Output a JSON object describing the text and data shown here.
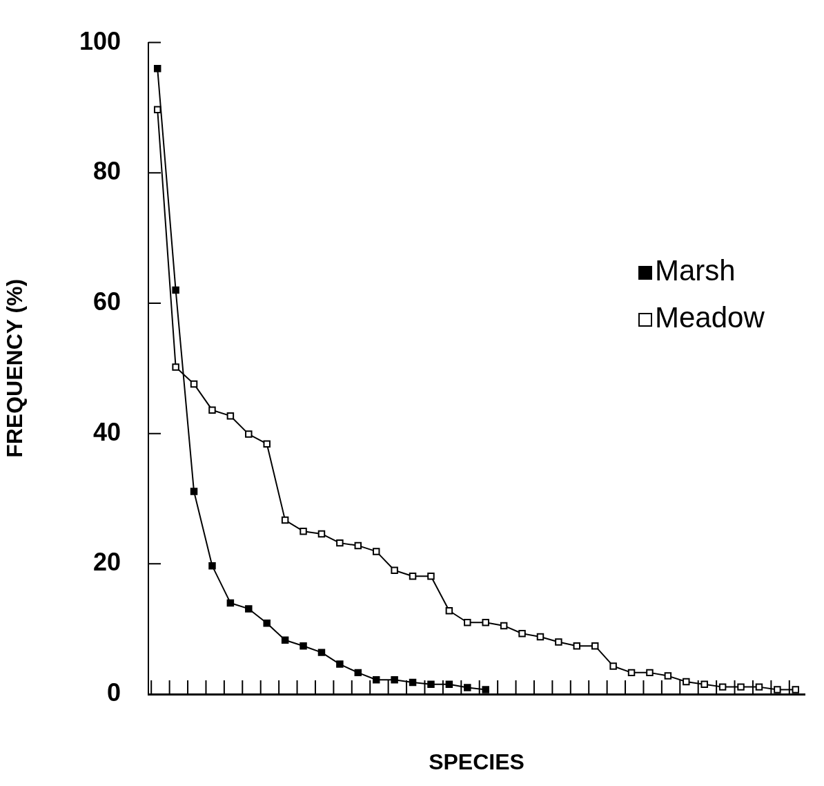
{
  "chart_data": {
    "type": "line",
    "xlabel": "SPECIES",
    "ylabel": "FREQUENCY (%)",
    "categories": [
      null,
      null,
      null,
      null,
      null,
      null,
      null,
      null,
      null,
      null,
      null,
      null,
      null,
      null,
      null,
      null,
      null,
      null,
      null,
      null,
      null,
      null,
      null,
      null,
      null,
      null,
      null,
      null,
      null,
      null,
      null,
      null,
      null,
      null,
      null,
      null
    ],
    "series": [
      {
        "name": "Marsh",
        "color": "#000000",
        "values": [
          96,
          62,
          31.1,
          19.7,
          14,
          13.1,
          10.9,
          8.3,
          7.4,
          6.4,
          4.6,
          3.3,
          2.2,
          2.2,
          1.8,
          1.5,
          1.5,
          1,
          0.7,
          null,
          null,
          null,
          null,
          null,
          null,
          null,
          null,
          null,
          null,
          null,
          null,
          null,
          null,
          null,
          null,
          null
        ]
      },
      {
        "name": "Meadow",
        "color": "#000000",
        "values": [
          89.7,
          50.2,
          47.6,
          43.6,
          42.7,
          39.9,
          38.4,
          26.7,
          25,
          24.6,
          23.2,
          22.8,
          21.9,
          19,
          18.1,
          18.1,
          12.8,
          11,
          11,
          10.5,
          9.3,
          8.8,
          8,
          7.4,
          7.4,
          4.3,
          3.3,
          3.3,
          2.8,
          1.9,
          1.5,
          1.1,
          1.1,
          1.1,
          0.7,
          0.7
        ]
      }
    ],
    "ylim": [
      0,
      100
    ],
    "yticks": [
      0,
      20,
      40,
      60,
      80,
      100
    ],
    "legend": "right",
    "marker": "square",
    "line_style": "solid"
  }
}
